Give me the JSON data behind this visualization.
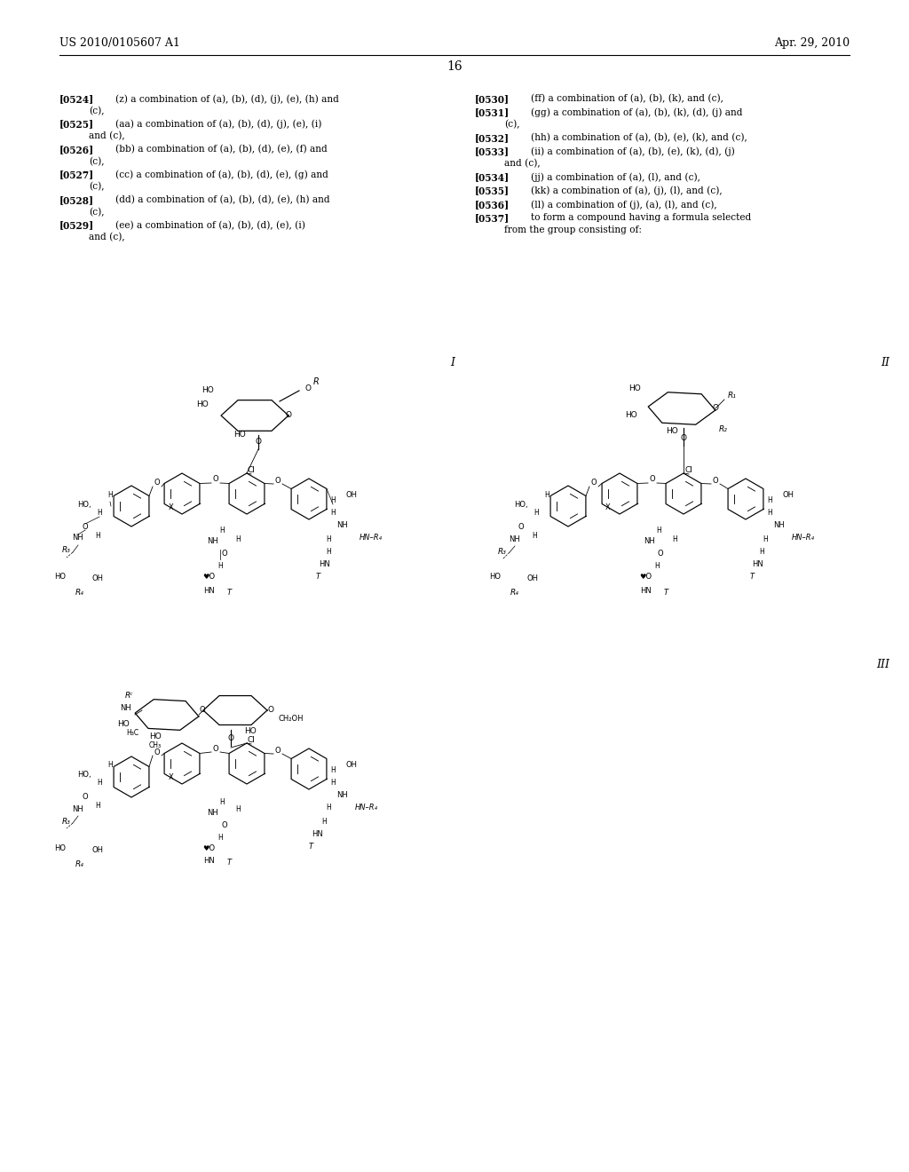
{
  "background_color": "#ffffff",
  "header_left": "US 2010/0105607 A1",
  "header_right": "Apr. 29, 2010",
  "page_number": "16",
  "text_color": "#000000",
  "left_blocks": [
    {
      "tag": "[0524]",
      "line1": "(z) a combination of (a), (b), (d), (j), (e), (h) and",
      "line2": "(c),"
    },
    {
      "tag": "[0525]",
      "line1": "(aa) a combination of (a), (b), (d), (j), (e), (i)",
      "line2": "and (c),"
    },
    {
      "tag": "[0526]",
      "line1": "(bb) a combination of (a), (b), (d), (e), (f) and",
      "line2": "(c),"
    },
    {
      "tag": "[0527]",
      "line1": "(cc) a combination of (a), (b), (d), (e), (g) and",
      "line2": "(c),"
    },
    {
      "tag": "[0528]",
      "line1": "(dd) a combination of (a), (b), (d), (e), (h) and",
      "line2": "(c),"
    },
    {
      "tag": "[0529]",
      "line1": "(ee) a combination of (a), (b), (d), (e), (i)",
      "line2": "and (c),"
    }
  ],
  "right_blocks": [
    {
      "tag": "[0530]",
      "line1": "(ff) a combination of (a), (b), (k), and (c),",
      "line2": ""
    },
    {
      "tag": "[0531]",
      "line1": "(gg) a combination of (a), (b), (k), (d), (j) and",
      "line2": "(c),"
    },
    {
      "tag": "[0532]",
      "line1": "(hh) a combination of (a), (b), (e), (k), and (c),",
      "line2": ""
    },
    {
      "tag": "[0533]",
      "line1": "(ii) a combination of (a), (b), (e), (k), (d), (j)",
      "line2": "and (c),"
    },
    {
      "tag": "[0534]",
      "line1": "(jj) a combination of (a), (l), and (c),",
      "line2": ""
    },
    {
      "tag": "[0535]",
      "line1": "(kk) a combination of (a), (j), (l), and (c),",
      "line2": ""
    },
    {
      "tag": "[0536]",
      "line1": "(ll) a combination of (j), (a), (l), and (c),",
      "line2": ""
    },
    {
      "tag": "[0537]",
      "line1": "to form a compound having a formula selected",
      "line2": "from the group consisting of:"
    }
  ]
}
